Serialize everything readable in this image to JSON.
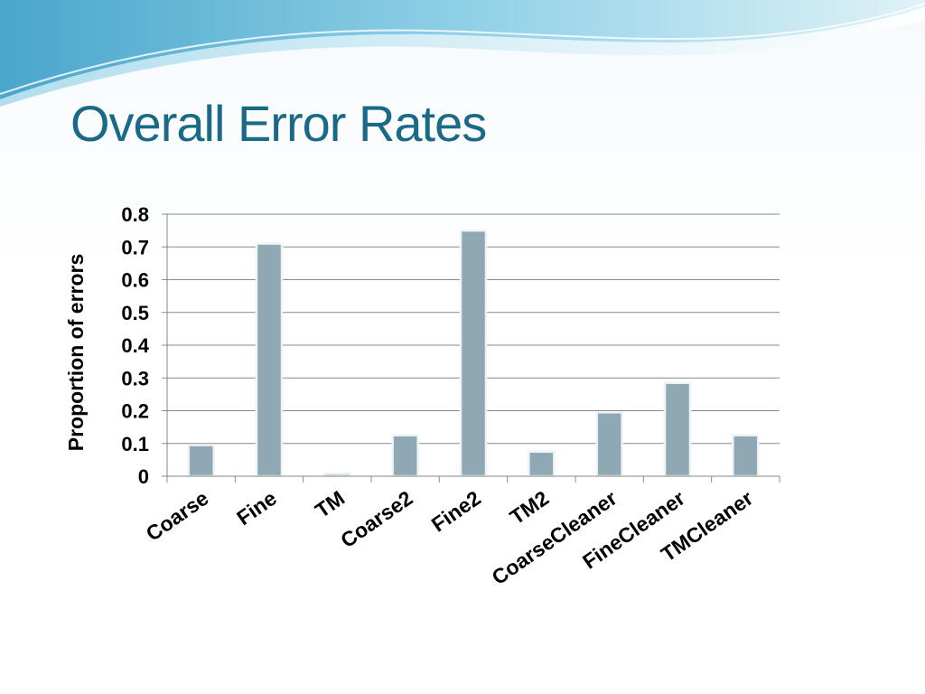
{
  "slide": {
    "title": "Overall Error Rates"
  },
  "colors": {
    "title": "#1a6a87",
    "bar_fill": "#8ea9b4",
    "bar_edge": "#eef4f6",
    "wave_dark": "#5fb4d4",
    "wave_light": "#bfe3ef"
  },
  "chart_data": {
    "type": "bar",
    "categories": [
      "Coarse",
      "Fine",
      "TM",
      "Coarse2",
      "Fine2",
      "TM2",
      "CoarseCleaner",
      "FineCleaner",
      "TMCleaner"
    ],
    "values": [
      0.095,
      0.71,
      0.008,
      0.125,
      0.75,
      0.075,
      0.195,
      0.285,
      0.125
    ],
    "ylabel": "Proportion of errors",
    "xlabel": "",
    "ylim": [
      0,
      0.8
    ],
    "yticks": [
      "0",
      "0.1",
      "0.2",
      "0.3",
      "0.4",
      "0.5",
      "0.6",
      "0.7",
      "0.8"
    ],
    "grid": true,
    "legend": "none"
  }
}
